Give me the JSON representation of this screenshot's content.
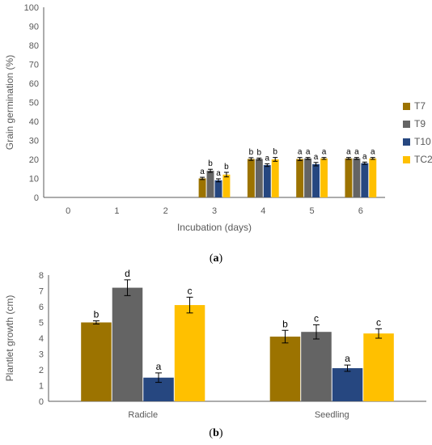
{
  "chart_data": [
    {
      "type": "bar",
      "title": "",
      "xlabel": "Incubation (days)",
      "ylabel": "Grain germination (%)",
      "ylim": [
        0,
        100
      ],
      "ytick_step": 10,
      "categories": [
        "0",
        "1",
        "2",
        "3",
        "4",
        "5",
        "6"
      ],
      "grid": false,
      "legend_position": "right",
      "series": [
        {
          "name": "T7",
          "color": "#9C7300",
          "values": [
            0,
            0,
            0,
            10,
            20.2,
            20.2,
            20.5
          ],
          "errors": [
            0,
            0,
            0,
            0.6,
            0.7,
            0.8,
            0.5
          ],
          "letters": [
            "",
            "",
            "",
            "a",
            "b",
            "a",
            "a"
          ]
        },
        {
          "name": "T9",
          "color": "#646464",
          "values": [
            0,
            0,
            0,
            14,
            20.2,
            20.5,
            20.5
          ],
          "errors": [
            0,
            0,
            0,
            0.8,
            0.5,
            0.5,
            0.5
          ],
          "letters": [
            "",
            "",
            "",
            "b",
            "b",
            "a",
            "a"
          ]
        },
        {
          "name": "T10",
          "color": "#264780",
          "values": [
            0,
            0,
            0,
            9,
            17,
            17.5,
            18
          ],
          "errors": [
            0,
            0,
            0,
            0.8,
            0.7,
            0.9,
            0.6
          ],
          "letters": [
            "",
            "",
            "",
            "a",
            "a",
            "a",
            "a"
          ]
        },
        {
          "name": "TC2",
          "color": "#FFC000",
          "values": [
            0,
            0,
            0,
            12,
            20,
            20.5,
            20.5
          ],
          "errors": [
            0,
            0,
            0,
            1.2,
            1.0,
            0.5,
            0.5
          ],
          "letters": [
            "",
            "",
            "",
            "b",
            "b",
            "a",
            "a"
          ]
        }
      ]
    },
    {
      "type": "bar",
      "title": "",
      "xlabel": "",
      "ylabel": "Plantlet growth (cm)",
      "ylim": [
        0,
        8
      ],
      "ytick_step": 1,
      "categories": [
        "Radicle",
        "Seedling"
      ],
      "grid": false,
      "legend_position": "none",
      "series": [
        {
          "name": "",
          "color": "#9C7300",
          "values": [
            5.0,
            4.1
          ],
          "errors": [
            0.1,
            0.4
          ],
          "letters": [
            "b",
            "b"
          ]
        },
        {
          "name": "",
          "color": "#646464",
          "values": [
            7.2,
            4.4
          ],
          "errors": [
            0.5,
            0.45
          ],
          "letters": [
            "d",
            "c"
          ]
        },
        {
          "name": "",
          "color": "#264780",
          "values": [
            1.5,
            2.1
          ],
          "errors": [
            0.3,
            0.2
          ],
          "letters": [
            "a",
            "a"
          ]
        },
        {
          "name": "",
          "color": "#FFC000",
          "values": [
            6.1,
            4.3
          ],
          "errors": [
            0.5,
            0.3
          ],
          "letters": [
            "c",
            "c"
          ]
        }
      ]
    }
  ],
  "captions": {
    "a": {
      "open": "(",
      "letter": "a",
      "close": ")"
    },
    "b": {
      "open": "(",
      "letter": "b",
      "close": ")"
    }
  }
}
